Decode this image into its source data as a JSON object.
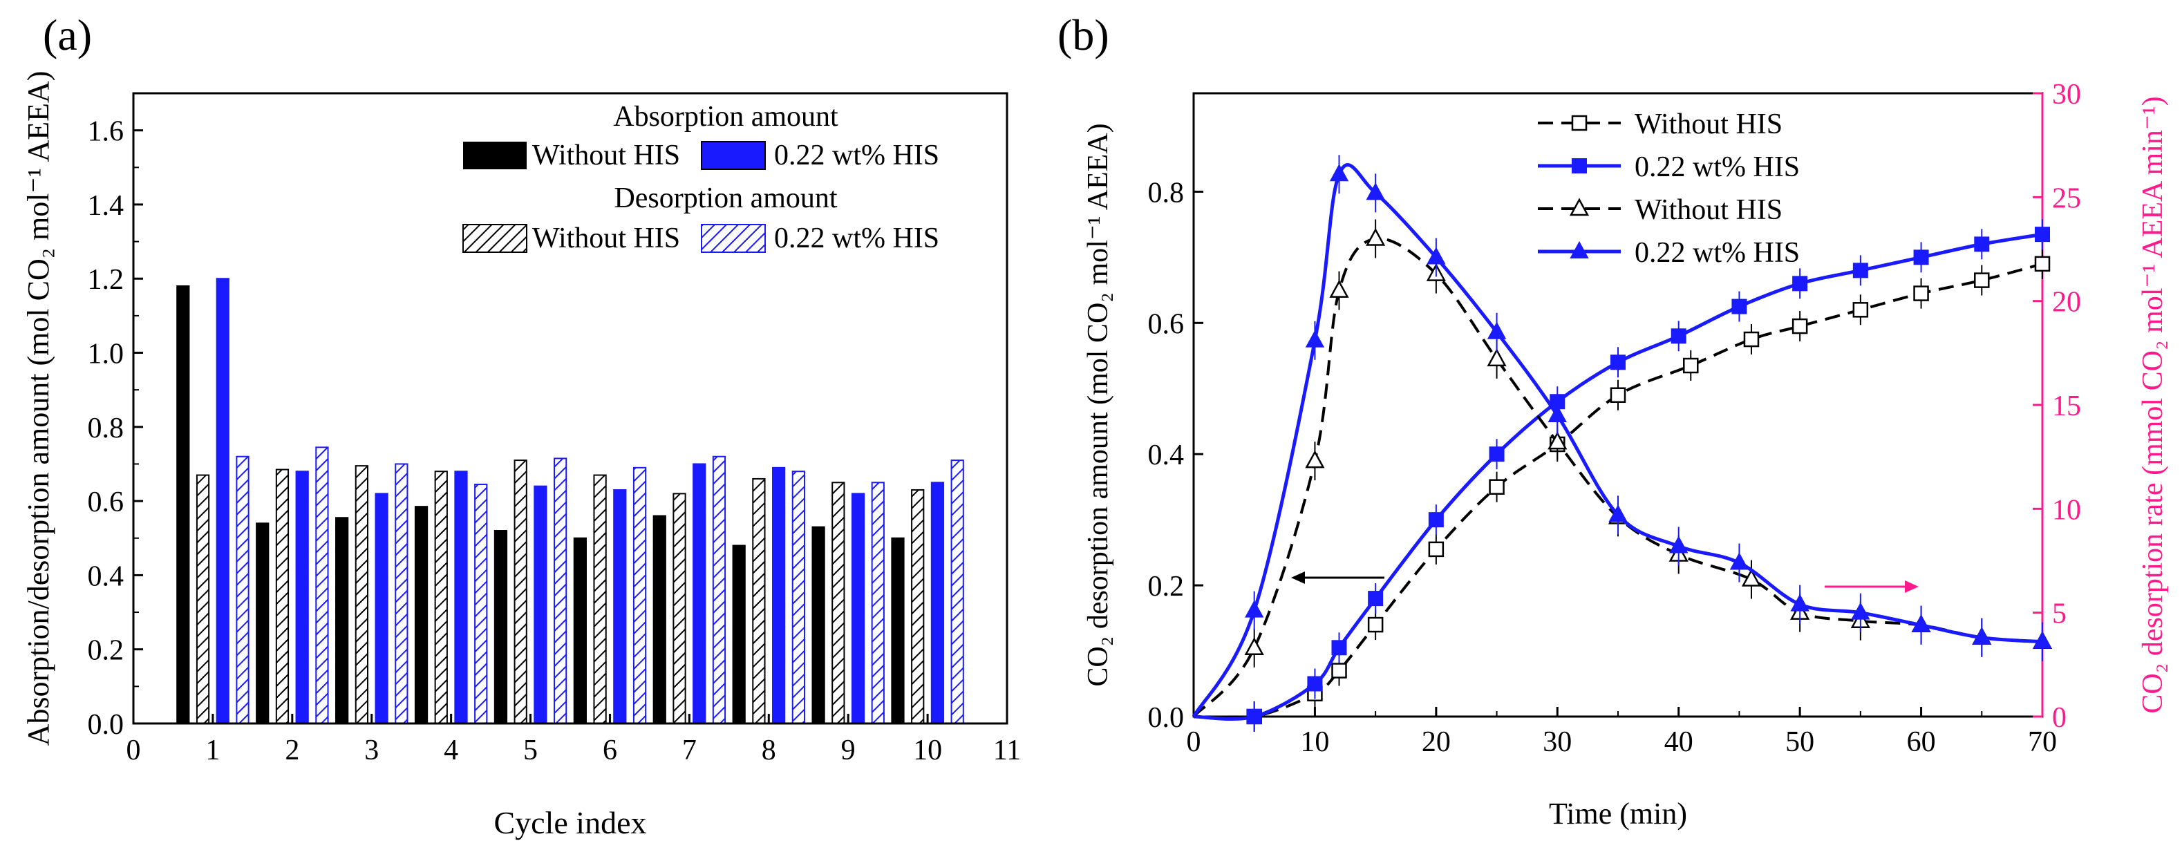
{
  "chart_data": [
    {
      "id": "a",
      "type": "bar",
      "panel_label": "(a)",
      "xlabel": "Cycle index",
      "ylabel": "Absorption/desorption amount (mol CO₂ mol⁻¹ AEEA)",
      "xlim": [
        0,
        11
      ],
      "ylim": [
        0,
        1.7
      ],
      "xticks": [
        "0",
        "1",
        "2",
        "3",
        "4",
        "5",
        "6",
        "7",
        "8",
        "9",
        "10",
        "11"
      ],
      "yticks": [
        "0.0",
        "0.2",
        "0.4",
        "0.6",
        "0.8",
        "1.0",
        "1.2",
        "1.4",
        "1.6"
      ],
      "categories": [
        1,
        2,
        3,
        4,
        5,
        6,
        7,
        8,
        9,
        10
      ],
      "legend": {
        "absorption_title": "Absorption amount",
        "desorption_title": "Desorption amount",
        "without": "Without HIS",
        "with": "0.22 wt% HIS"
      },
      "series": [
        {
          "name": "Absorption - Without HIS",
          "values": [
            1.18,
            0.54,
            0.555,
            0.585,
            0.52,
            0.5,
            0.56,
            0.48,
            0.53,
            0.5
          ]
        },
        {
          "name": "Desorption - Without HIS",
          "values": [
            0.67,
            0.685,
            0.695,
            0.68,
            0.71,
            0.67,
            0.62,
            0.66,
            0.65,
            0.63
          ]
        },
        {
          "name": "Absorption - 0.22 wt% HIS",
          "values": [
            1.2,
            0.68,
            0.62,
            0.68,
            0.64,
            0.63,
            0.7,
            0.69,
            0.62,
            0.65
          ]
        },
        {
          "name": "Desorption - 0.22 wt% HIS",
          "values": [
            0.72,
            0.745,
            0.7,
            0.645,
            0.715,
            0.69,
            0.72,
            0.68,
            0.65,
            0.71
          ]
        }
      ]
    },
    {
      "id": "b",
      "type": "line",
      "panel_label": "(b)",
      "xlabel": "Time (min)",
      "ylabel_left": "CO₂ desorption amount (mol CO₂ mol⁻¹ AEEA)",
      "ylabel_right": "CO₂ desorption rate (mmol CO₂ mol⁻¹ AEEA min⁻¹)",
      "xlim": [
        0,
        70
      ],
      "ylim_left": [
        0,
        0.95
      ],
      "ylim_right": [
        0,
        30
      ],
      "xticks": [
        "0",
        "10",
        "20",
        "30",
        "40",
        "50",
        "60",
        "70"
      ],
      "yticks_left": [
        "0.0",
        "0.2",
        "0.4",
        "0.6",
        "0.8"
      ],
      "yticks_right": [
        "0",
        "5",
        "10",
        "15",
        "20",
        "25",
        "30"
      ],
      "legend": [
        "Without HIS",
        "0.22 wt% HIS",
        "Without HIS",
        "0.22 wt% HIS"
      ],
      "series": [
        {
          "name": "Without HIS",
          "axis": "left",
          "marker": "square-open",
          "style": "dashed",
          "x": [
            5,
            10,
            12,
            15,
            20,
            25,
            30,
            35,
            41,
            46,
            50,
            55,
            60,
            65,
            70
          ],
          "y": [
            0.0,
            0.035,
            0.07,
            0.14,
            0.255,
            0.35,
            0.415,
            0.49,
            0.535,
            0.575,
            0.595,
            0.62,
            0.645,
            0.665,
            0.69
          ]
        },
        {
          "name": "0.22 wt% HIS",
          "axis": "left",
          "marker": "square-filled",
          "style": "solid",
          "x": [
            5,
            10,
            12,
            15,
            20,
            25,
            30,
            35,
            40,
            45,
            50,
            55,
            60,
            65,
            70
          ],
          "y": [
            0.0,
            0.05,
            0.105,
            0.18,
            0.3,
            0.4,
            0.48,
            0.54,
            0.58,
            0.625,
            0.66,
            0.68,
            0.7,
            0.72,
            0.735
          ]
        },
        {
          "name": "Without HIS",
          "axis": "right",
          "marker": "triangle-open",
          "style": "dashed",
          "x": [
            5,
            10,
            12,
            15,
            20,
            25,
            30,
            35,
            40,
            46,
            50,
            55,
            60,
            65,
            70
          ],
          "y": [
            3.3,
            12.3,
            20.5,
            23.0,
            21.3,
            17.2,
            13.2,
            9.6,
            7.8,
            6.6,
            5.0,
            4.6,
            4.4,
            3.8,
            3.6
          ]
        },
        {
          "name": "0.22 wt% HIS",
          "axis": "right",
          "marker": "triangle-filled",
          "style": "solid",
          "x": [
            5,
            10,
            12,
            15,
            20,
            25,
            30,
            35,
            40,
            45,
            50,
            55,
            60,
            65,
            70
          ],
          "y": [
            5.1,
            18.1,
            26.1,
            25.2,
            22.1,
            18.5,
            14.5,
            9.7,
            8.2,
            7.4,
            5.4,
            5.0,
            4.4,
            3.8,
            3.6
          ]
        }
      ]
    }
  ]
}
